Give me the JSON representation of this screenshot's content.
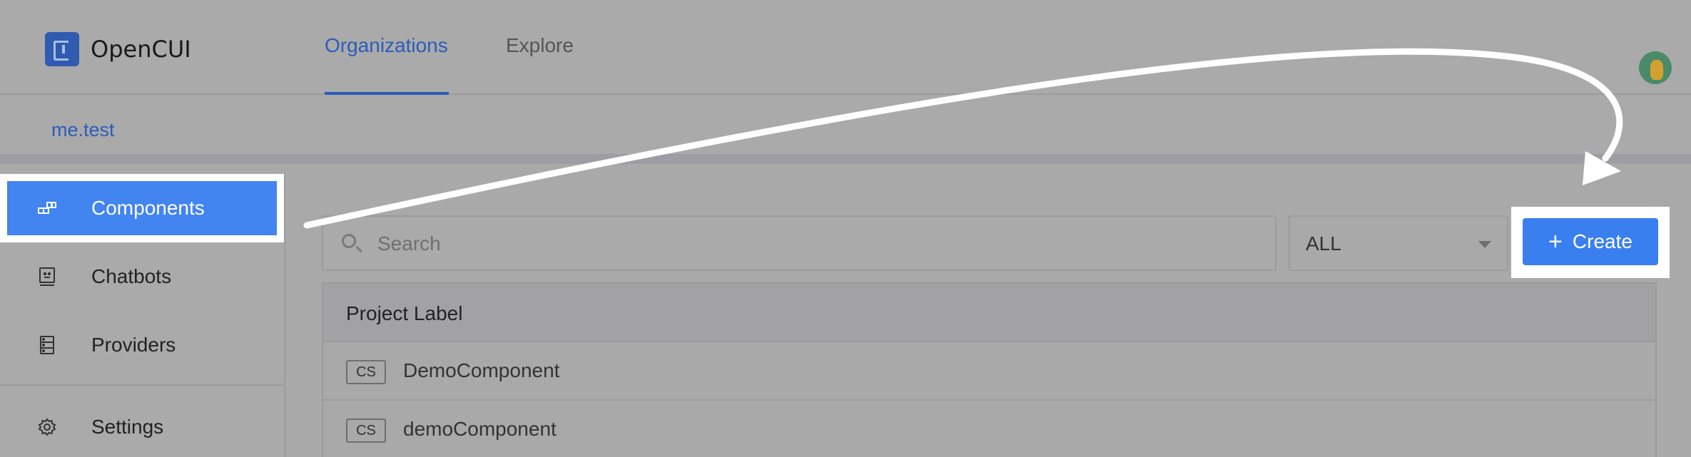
{
  "app": {
    "name": "OpenCUI"
  },
  "header": {
    "tabs": [
      {
        "label": "Organizations",
        "active": true
      },
      {
        "label": "Explore",
        "active": false
      }
    ]
  },
  "org": {
    "name": "me.test"
  },
  "sidebar": {
    "items": [
      {
        "label": "Components",
        "icon": "components-icon",
        "active": true
      },
      {
        "label": "Chatbots",
        "icon": "chatbot-icon",
        "active": false
      },
      {
        "label": "Providers",
        "icon": "providers-icon",
        "active": false
      },
      {
        "label": "Settings",
        "icon": "gear-icon",
        "active": false
      }
    ]
  },
  "toolbar": {
    "search_placeholder": "Search",
    "filter_value": "ALL",
    "create_label": "Create"
  },
  "table": {
    "header": "Project Label",
    "rows": [
      {
        "tag": "CS",
        "name": "DemoComponent"
      },
      {
        "tag": "CS",
        "name": "demoComponent"
      }
    ]
  },
  "colors": {
    "accent": "#3a7ff0",
    "link": "#2c5cb8",
    "overlay_gray": "#a9a9a9",
    "highlight": "#ffffff"
  }
}
